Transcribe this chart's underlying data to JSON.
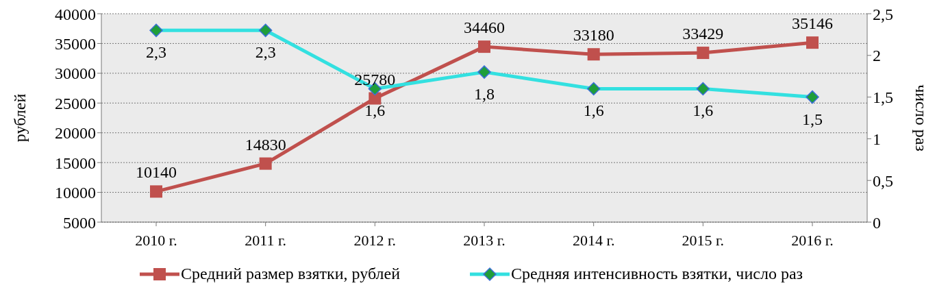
{
  "chart_data": {
    "type": "line",
    "categories": [
      "2010 г.",
      "2011 г.",
      "2012 г.",
      "2013 г.",
      "2014 г.",
      "2015 г.",
      "2016 г."
    ],
    "series": [
      {
        "name": "Средний размер взятки, рублей",
        "color": "#c0504d",
        "marker": "square",
        "values": [
          10140,
          14830,
          25780,
          34460,
          33180,
          33429,
          35146
        ],
        "value_labels": [
          "10140",
          "14830",
          "25780",
          "34460",
          "33180",
          "33429",
          "35146"
        ]
      },
      {
        "name": "Средняя интенсивность взятки, число раз",
        "color": "#33e0e0",
        "marker": "diamond",
        "axis": "y2",
        "values": [
          2.3,
          2.3,
          1.6,
          1.8,
          1.6,
          1.6,
          1.5
        ],
        "value_labels": [
          "2,3",
          "2,3",
          "1,6",
          "1,8",
          "1,6",
          "1,6",
          "1,5"
        ]
      }
    ],
    "ylabel": "рублей",
    "y2label": "число раз",
    "ylim": [
      5000,
      40000
    ],
    "yticks": [
      5000,
      10000,
      15000,
      20000,
      25000,
      30000,
      35000,
      40000
    ],
    "y2lim": [
      0,
      2.5
    ],
    "y2ticks": [
      0,
      {
        "value": 0.5,
        "label": "0,5"
      },
      1,
      {
        "value": 1.5,
        "label": "1,5"
      },
      2,
      {
        "value": 2.5,
        "label": "2,5"
      }
    ],
    "grid": "y",
    "legend": "bottom",
    "line_style": "solid"
  }
}
